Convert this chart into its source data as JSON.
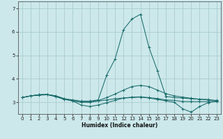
{
  "title": "",
  "xlabel": "Humidex (Indice chaleur)",
  "background_color": "#cce8eb",
  "grid_color": "#aacccc",
  "line_color": "#1a6b6b",
  "xlim": [
    -0.5,
    23.5
  ],
  "ylim": [
    2.5,
    7.3
  ],
  "yticks": [
    3,
    4,
    5,
    6,
    7
  ],
  "xticks": [
    0,
    1,
    2,
    3,
    4,
    5,
    6,
    7,
    8,
    9,
    10,
    11,
    12,
    13,
    14,
    15,
    16,
    17,
    18,
    19,
    20,
    21,
    22,
    23
  ],
  "series": [
    [
      3.2,
      3.27,
      3.32,
      3.33,
      3.27,
      3.15,
      3.1,
      3.05,
      3.05,
      3.1,
      4.15,
      4.85,
      6.1,
      6.55,
      6.75,
      5.35,
      4.35,
      3.25,
      3.2,
      3.18,
      3.15,
      3.13,
      3.12,
      3.05
    ],
    [
      3.2,
      3.27,
      3.32,
      3.33,
      3.27,
      3.15,
      3.05,
      2.88,
      2.82,
      2.88,
      2.98,
      3.08,
      3.18,
      3.2,
      3.22,
      3.18,
      3.12,
      3.06,
      3.0,
      2.72,
      2.58,
      2.82,
      2.98,
      3.05
    ],
    [
      3.2,
      3.27,
      3.3,
      3.32,
      3.24,
      3.12,
      3.06,
      3.0,
      3.0,
      3.05,
      3.1,
      3.15,
      3.18,
      3.22,
      3.23,
      3.2,
      3.16,
      3.1,
      3.08,
      3.03,
      3.03,
      3.03,
      3.03,
      3.03
    ],
    [
      3.2,
      3.27,
      3.32,
      3.33,
      3.24,
      3.13,
      3.07,
      3.01,
      3.01,
      3.07,
      3.2,
      3.35,
      3.52,
      3.67,
      3.72,
      3.67,
      3.52,
      3.37,
      3.27,
      3.22,
      3.17,
      3.13,
      3.1,
      3.08
    ]
  ]
}
